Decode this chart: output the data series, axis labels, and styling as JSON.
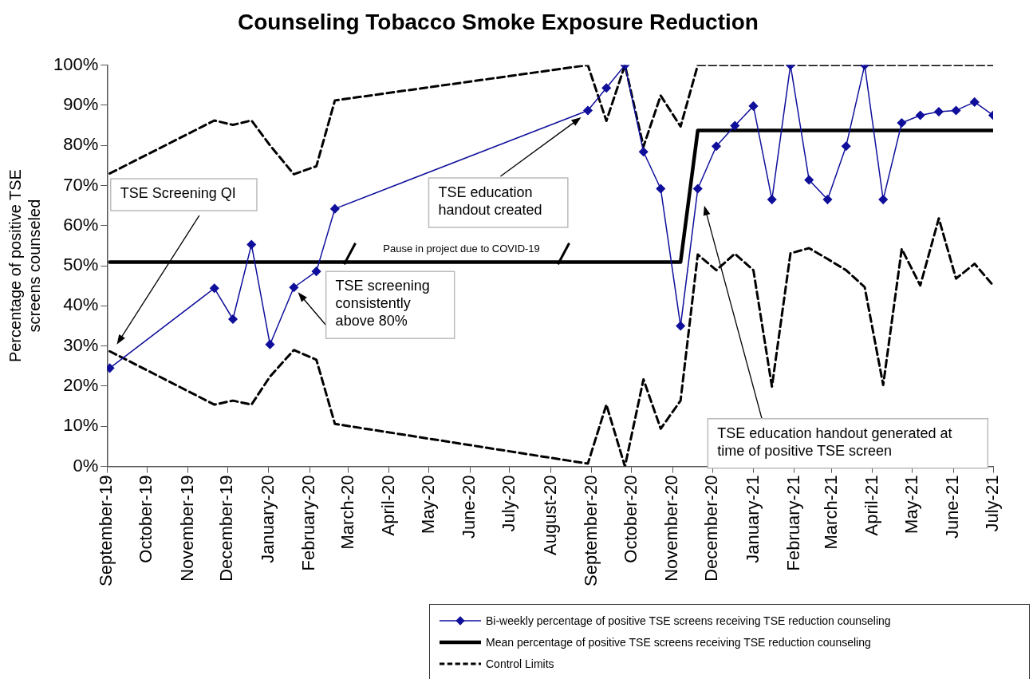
{
  "chart_data": {
    "type": "line",
    "title": "Counseling Tobacco Smoke Exposure Reduction",
    "ylabel": "Percentage of positive TSE screens counseled",
    "x": [
      "2019-09-03",
      "2019-11-21",
      "2019-12-05",
      "2019-12-19",
      "2020-01-02",
      "2020-01-20",
      "2020-02-06",
      "2020-02-20",
      "2020-08-29",
      "2020-09-12",
      "2020-09-26",
      "2020-10-10",
      "2020-10-23",
      "2020-11-07",
      "2020-11-20",
      "2020-12-04",
      "2020-12-18",
      "2021-01-01",
      "2021-01-15",
      "2021-01-29",
      "2021-02-12",
      "2021-02-26",
      "2021-03-12",
      "2021-03-26",
      "2021-04-09",
      "2021-04-23",
      "2021-05-07",
      "2021-05-21",
      "2021-06-03",
      "2021-06-17",
      "2021-07-01"
    ],
    "series": [
      {
        "name": "Bi-weekly percentage of positive TSE screens receiving TSE reduction counseling",
        "color": "#0f0f9b",
        "marker": "diamond",
        "line_style": "solid",
        "values": [
          24.5,
          44.4,
          36.7,
          55.3,
          30.4,
          44.6,
          48.6,
          64.2,
          88.7,
          94.3,
          100,
          78.4,
          69.2,
          35.0,
          69.2,
          79.8,
          84.9,
          89.8,
          66.5,
          100,
          71.4,
          66.5,
          79.8,
          100,
          66.5,
          85.6,
          87.5,
          88.4,
          88.7,
          90.8,
          87.5
        ]
      },
      {
        "name": "Mean percentage of positive TSE screens receiving TSE reduction counseling",
        "color": "#000000",
        "marker": "none",
        "line_style": "solid",
        "values": [
          50.9,
          50.9,
          50.9,
          50.9,
          50.9,
          50.9,
          50.9,
          50.9,
          50.9,
          50.9,
          50.9,
          50.9,
          50.9,
          50.9,
          83.7,
          83.7,
          83.7,
          83.7,
          83.7,
          83.7,
          83.7,
          83.7,
          83.7,
          83.7,
          83.7,
          83.7,
          83.7,
          83.7,
          83.7,
          83.7,
          83.7
        ]
      },
      {
        "name": "Control Limits",
        "color": "#000000",
        "marker": "none",
        "line_style": "dashed",
        "values": [
          73.0,
          86.2,
          85.1,
          86.2,
          80.0,
          72.8,
          74.8,
          91.2,
          100,
          86.1,
          100,
          79.7,
          92.4,
          84.7,
          100,
          100,
          100,
          100,
          100,
          100,
          100,
          100,
          100,
          100,
          100,
          100,
          100,
          100,
          100,
          100,
          100
        ]
      },
      {
        "color": "#000000",
        "marker": "none",
        "line_style": "dashed",
        "values": [
          28.7,
          15.4,
          16.4,
          15.4,
          22.4,
          29.0,
          26.6,
          10.6,
          0.7,
          15.4,
          0,
          21.7,
          9.4,
          16.4,
          52.8,
          48.9,
          53.0,
          48.9,
          19.9,
          53.1,
          54.4,
          51.7,
          48.9,
          44.7,
          20.3,
          54.2,
          45.1,
          61.8,
          46.8,
          50.5,
          45.1
        ]
      }
    ],
    "xlim": [
      "2019-09-01",
      "2021-07-01"
    ],
    "xticks": [
      {
        "value": "2019-09-01",
        "label": "September-19"
      },
      {
        "value": "2019-10-01",
        "label": "October-19"
      },
      {
        "value": "2019-11-01",
        "label": "November-19"
      },
      {
        "value": "2019-12-01",
        "label": "December-19"
      },
      {
        "value": "2020-01-01",
        "label": "January-20"
      },
      {
        "value": "2020-02-01",
        "label": "February-20"
      },
      {
        "value": "2020-03-01",
        "label": "March-20"
      },
      {
        "value": "2020-04-01",
        "label": "April-20"
      },
      {
        "value": "2020-05-01",
        "label": "May-20"
      },
      {
        "value": "2020-06-01",
        "label": "June-20"
      },
      {
        "value": "2020-07-01",
        "label": "July-20"
      },
      {
        "value": "2020-08-01",
        "label": "August-20"
      },
      {
        "value": "2020-09-01",
        "label": "September-20"
      },
      {
        "value": "2020-10-01",
        "label": "October-20"
      },
      {
        "value": "2020-11-01",
        "label": "November-20"
      },
      {
        "value": "2020-12-01",
        "label": "December-20"
      },
      {
        "value": "2021-01-01",
        "label": "January-21"
      },
      {
        "value": "2021-02-01",
        "label": "February-21"
      },
      {
        "value": "2021-03-01",
        "label": "March-21"
      },
      {
        "value": "2021-04-01",
        "label": "April-21"
      },
      {
        "value": "2021-05-01",
        "label": "May-21"
      },
      {
        "value": "2021-06-01",
        "label": "June-21"
      },
      {
        "value": "2021-07-01",
        "label": "July-21"
      }
    ],
    "ylim": [
      0,
      100
    ],
    "yticks": [
      {
        "value": 0,
        "label": "0%"
      },
      {
        "value": 10,
        "label": "10%"
      },
      {
        "value": 20,
        "label": "20%"
      },
      {
        "value": 30,
        "label": "30%"
      },
      {
        "value": 40,
        "label": "40%"
      },
      {
        "value": 50,
        "label": "50%"
      },
      {
        "value": 60,
        "label": "60%"
      },
      {
        "value": 70,
        "label": "70%"
      },
      {
        "value": 80,
        "label": "80%"
      },
      {
        "value": 90,
        "label": "90%"
      },
      {
        "value": 100,
        "label": "100%"
      }
    ],
    "legend": "bottom right",
    "annotations": [
      "TSE Screening QI",
      {
        "text": "TSE screening consistently above 80%",
        "x": "2020-01-20",
        "y": 44.6
      },
      "TSE education handout created",
      "Pause in project due to COVID-19",
      "TSE education handout generated at time of positive TSE screen"
    ]
  }
}
